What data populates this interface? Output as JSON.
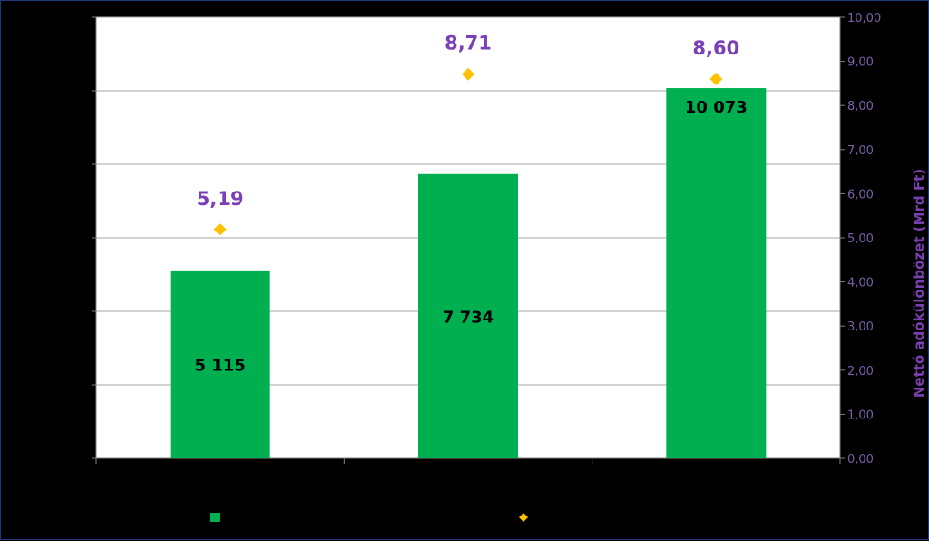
{
  "chart_data": {
    "type": "bar",
    "categories": [
      "",
      "",
      ""
    ],
    "series": [
      {
        "type": "bar",
        "axis": "left",
        "values": [
          5115,
          7734,
          10073
        ],
        "labels": [
          "5 115",
          "7 734",
          "10 073"
        ],
        "color": "#00b050"
      },
      {
        "type": "scatter",
        "axis": "right",
        "marker": "diamond",
        "values": [
          5.19,
          8.71,
          8.6
        ],
        "labels": [
          "5,19",
          "8,71",
          "8,60"
        ],
        "color": "#ffc000"
      }
    ],
    "y_left_range": [
      0,
      12000
    ],
    "y_right_range": [
      0,
      10
    ],
    "y_right_ticks": [
      "0,00",
      "1,00",
      "2,00",
      "3,00",
      "4,00",
      "5,00",
      "6,00",
      "7,00",
      "8,00",
      "9,00",
      "10,00"
    ],
    "y_right_label": "Nettó adókülönbözet (Mrd Ft)",
    "grid": true,
    "legend": "bottom",
    "colors": {
      "plot_background": "#ffffff",
      "page_background": "#000000",
      "gridline": "#a6a6a6",
      "tick_text": "#7a5fa8",
      "axis_title": "#7a3fb0",
      "point_label": "#7b3fb6"
    }
  }
}
